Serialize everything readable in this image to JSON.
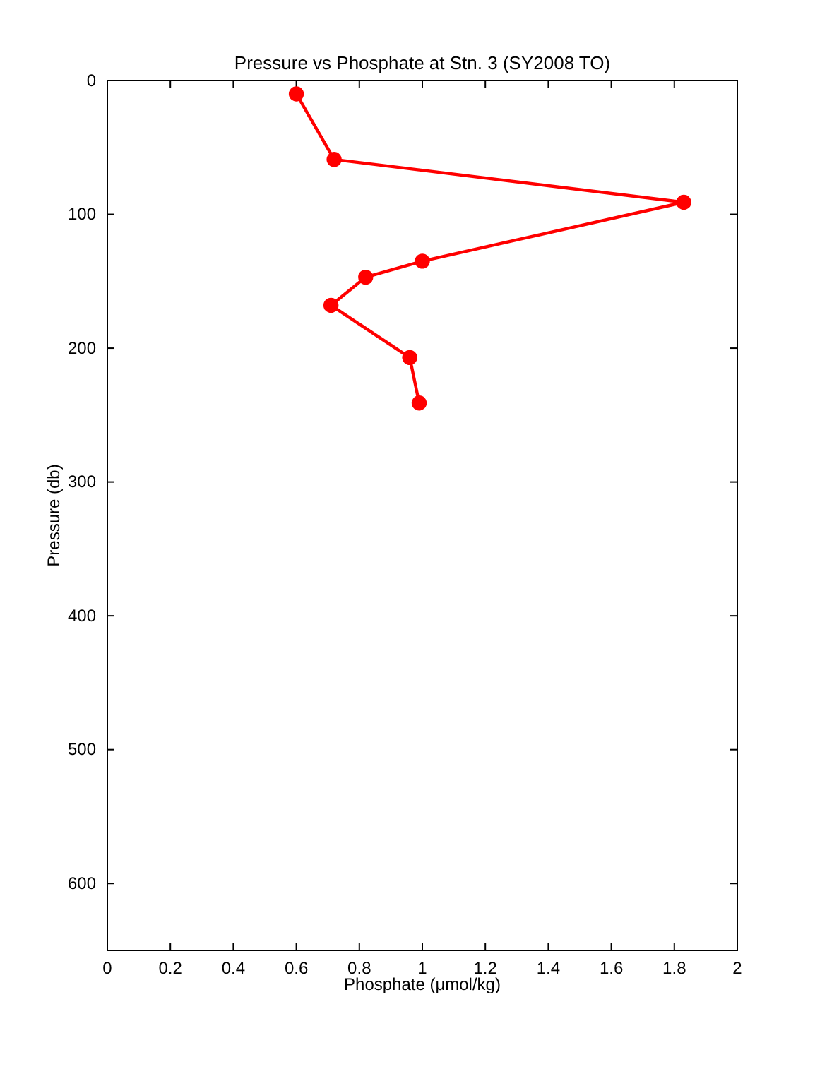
{
  "chart_data": {
    "type": "line",
    "title": "Pressure vs Phosphate at Stn. 3 (SY2008 TO)",
    "xlabel": "Phosphate (μmol/kg)",
    "ylabel": "Pressure (db)",
    "series": [
      {
        "color": "#ff0000",
        "x": [
          0.6,
          0.72,
          1.83,
          1.0,
          0.82,
          0.71,
          0.96,
          0.99
        ],
        "values": [
          10,
          59,
          91,
          135,
          147,
          168,
          207,
          241
        ]
      }
    ],
    "xlim": [
      0,
      2
    ],
    "xticks": [
      0,
      0.2,
      0.4,
      0.6,
      0.8,
      1,
      1.2,
      1.4,
      1.6,
      1.8,
      2
    ],
    "ylim": [
      650,
      0
    ],
    "yticks": [
      0,
      100,
      200,
      300,
      400,
      500,
      600
    ],
    "marker": "circle",
    "line_style": "solid",
    "grid": false
  }
}
